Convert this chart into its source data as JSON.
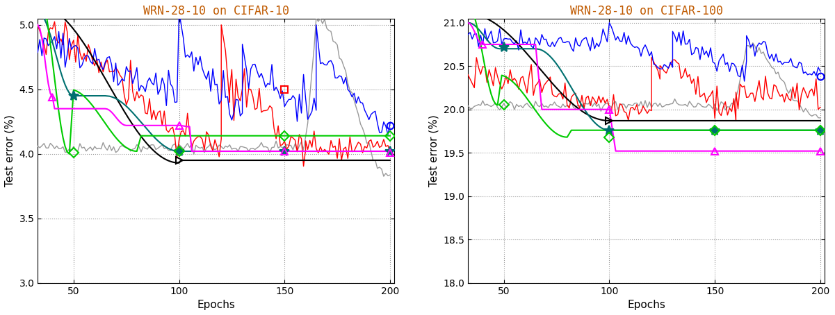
{
  "title1": "WRN-28-10 on CIFAR-10",
  "title2": "WRN-28-10 on CIFAR-100",
  "xlabel": "Epochs",
  "ylabel1": "Test error (%)",
  "ylabel2": "Test error (%)",
  "xlim": [
    33,
    202
  ],
  "ylim1": [
    3.0,
    5.05
  ],
  "ylim2": [
    18.0,
    21.05
  ],
  "yticks1": [
    3.0,
    3.5,
    4.0,
    4.5,
    5.0
  ],
  "yticks2": [
    18.0,
    18.5,
    19.0,
    19.5,
    20.0,
    20.5,
    21.0
  ],
  "xticks": [
    50,
    100,
    150,
    200
  ],
  "title_color": "#c05a00",
  "bg_color": "#ffffff",
  "teal_color": "#007070",
  "green_color": "#00cc00",
  "magenta_color": "#ff00ff",
  "red_color": "#ff0000",
  "blue_color": "#0000ff",
  "black_color": "#000000",
  "gray_color": "#999999"
}
